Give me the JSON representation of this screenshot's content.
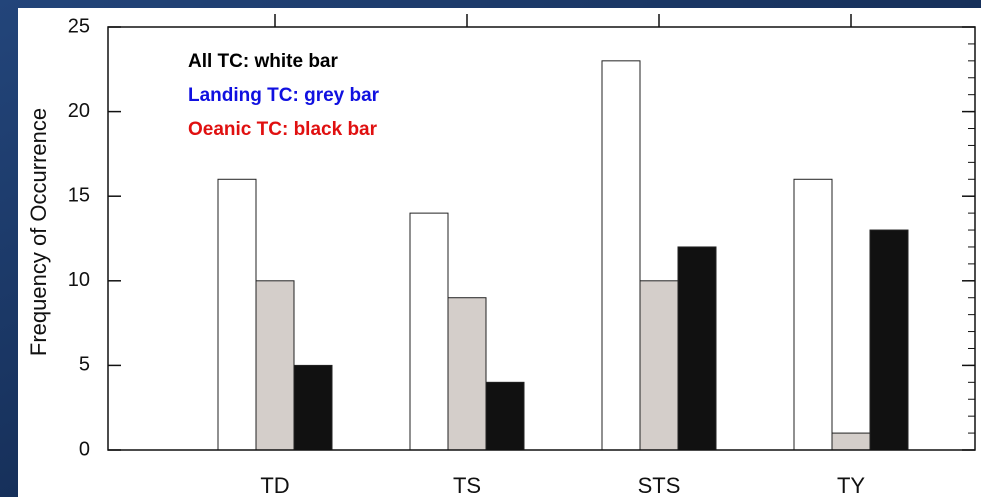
{
  "chart_data": {
    "type": "bar",
    "y_label": "Frequency of Occurrence",
    "categories": [
      "TD",
      "TS",
      "STS",
      "TY"
    ],
    "series": [
      {
        "name": "All TC: white bar",
        "color": "#ffffff",
        "label_color": "#000000",
        "values": [
          16,
          14,
          23,
          16
        ]
      },
      {
        "name": "Landing TC: grey bar",
        "color": "#d4ceca",
        "label_color": "#1010e0",
        "values": [
          10,
          9,
          10,
          1
        ]
      },
      {
        "name": "Oeanic TC: black bar",
        "color": "#111111",
        "label_color": "#e01010",
        "values": [
          5,
          4,
          12,
          13
        ]
      }
    ],
    "ylim": [
      0,
      25
    ],
    "yticks": [
      0,
      5,
      10,
      15,
      20,
      25
    ],
    "grid": false,
    "legend": "upper left"
  }
}
